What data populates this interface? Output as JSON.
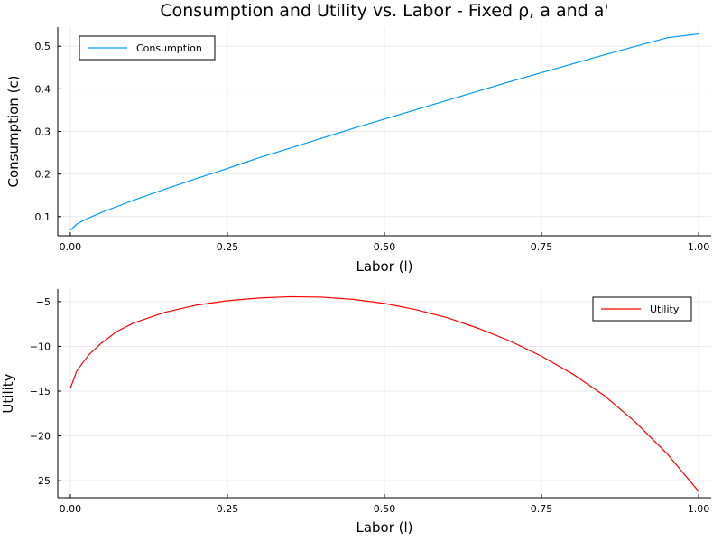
{
  "title": "Consumption and Utility vs. Labor - Fixed ρ, a and a'",
  "chart_data": [
    {
      "type": "line",
      "xlabel": "Labor (l)",
      "ylabel": "Consumption (c)",
      "xlim": [
        -0.02,
        1.02
      ],
      "ylim": [
        0.055,
        0.545
      ],
      "xticks": [
        0.0,
        0.25,
        0.5,
        0.75,
        1.0
      ],
      "xtick_labels": [
        "0.00",
        "0.25",
        "0.50",
        "0.75",
        "1.00"
      ],
      "yticks": [
        0.1,
        0.2,
        0.3,
        0.4,
        0.5
      ],
      "ytick_labels": [
        "0.1",
        "0.2",
        "0.3",
        "0.4",
        "0.5"
      ],
      "grid": true,
      "legend_position": "top-left",
      "series": [
        {
          "name": "Consumption",
          "color": "#009af9",
          "x": [
            0.0,
            0.01,
            0.025,
            0.05,
            0.1,
            0.15,
            0.2,
            0.25,
            0.3,
            0.35,
            0.4,
            0.45,
            0.5,
            0.55,
            0.6,
            0.65,
            0.7,
            0.75,
            0.8,
            0.85,
            0.9,
            0.95,
            1.0
          ],
          "y": [
            0.068,
            0.082,
            0.094,
            0.11,
            0.138,
            0.164,
            0.189,
            0.213,
            0.238,
            0.261,
            0.284,
            0.307,
            0.329,
            0.351,
            0.373,
            0.395,
            0.417,
            0.438,
            0.459,
            0.48,
            0.5,
            0.52,
            0.529
          ]
        }
      ]
    },
    {
      "type": "line",
      "xlabel": "Labor (l)",
      "ylabel": "Utility",
      "xlim": [
        -0.02,
        1.02
      ],
      "ylim": [
        -26.9,
        -3.6
      ],
      "xticks": [
        0.0,
        0.25,
        0.5,
        0.75,
        1.0
      ],
      "xtick_labels": [
        "0.00",
        "0.25",
        "0.50",
        "0.75",
        "1.00"
      ],
      "yticks": [
        -5,
        -10,
        -15,
        -20,
        -25
      ],
      "ytick_labels": [
        "−5",
        "−10",
        "−15",
        "−20",
        "−25"
      ],
      "grid": true,
      "legend_position": "top-right",
      "series": [
        {
          "name": "Utility",
          "color": "#ff0000",
          "x": [
            0.0,
            0.01,
            0.02,
            0.03,
            0.05,
            0.075,
            0.1,
            0.15,
            0.2,
            0.25,
            0.3,
            0.35,
            0.4,
            0.45,
            0.5,
            0.55,
            0.6,
            0.65,
            0.7,
            0.75,
            0.8,
            0.85,
            0.9,
            0.95,
            1.0
          ],
          "y": [
            -14.7,
            -12.8,
            -11.8,
            -10.9,
            -9.6,
            -8.3,
            -7.4,
            -6.2,
            -5.4,
            -4.9,
            -4.6,
            -4.45,
            -4.5,
            -4.75,
            -5.2,
            -5.9,
            -6.8,
            -8.0,
            -9.4,
            -11.1,
            -13.1,
            -15.5,
            -18.5,
            -22.0,
            -26.2
          ]
        }
      ]
    }
  ]
}
